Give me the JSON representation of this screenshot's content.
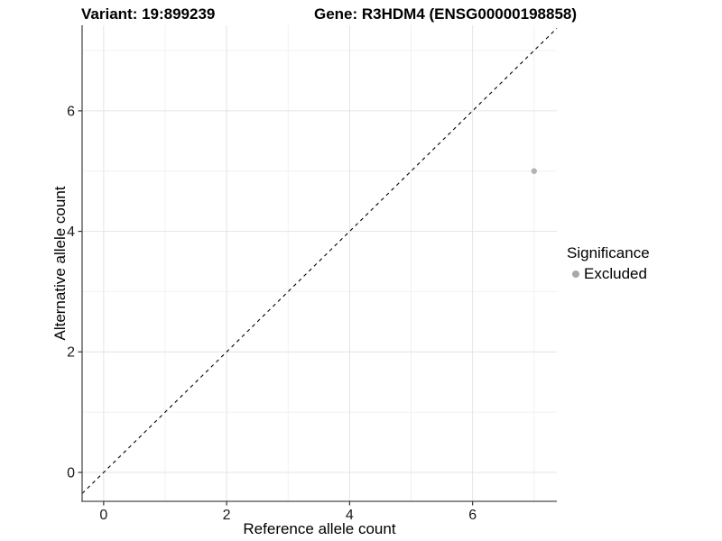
{
  "header": {
    "variant_label": "Variant: 19:899239",
    "gene_label": "Gene: R3HDM4 (ENSG00000198858)"
  },
  "chart_data": {
    "type": "scatter",
    "xlabel": "Reference allele count",
    "ylabel": "Alternative allele count",
    "x_ticks": [
      0,
      2,
      4,
      6
    ],
    "y_ticks": [
      0,
      2,
      4,
      6
    ],
    "x_minor": [
      1,
      3,
      5,
      7
    ],
    "y_minor": [
      1,
      3,
      5,
      7
    ],
    "xlim": [
      -0.35,
      7.37
    ],
    "ylim": [
      -0.48,
      7.42
    ],
    "grid": true,
    "points": [
      {
        "x": 7,
        "y": 5,
        "significance": "Excluded"
      }
    ],
    "identity_line": {
      "slope": 1,
      "intercept": 0,
      "style": "dashed"
    },
    "legend": {
      "title": "Significance",
      "position": "right",
      "items": [
        {
          "label": "Excluded",
          "color": "#b3b3b3"
        }
      ]
    },
    "colors": {
      "point": "#b3b3b3",
      "legend_dot": "#a8a8a8",
      "grid_major": "#e4e4e4",
      "grid_minor": "#f1f1f1",
      "axis_line": "#4a4a4a",
      "tick_mark": "#333333",
      "tick_label": "#1a1a1a",
      "identity_line": "#000000"
    }
  }
}
